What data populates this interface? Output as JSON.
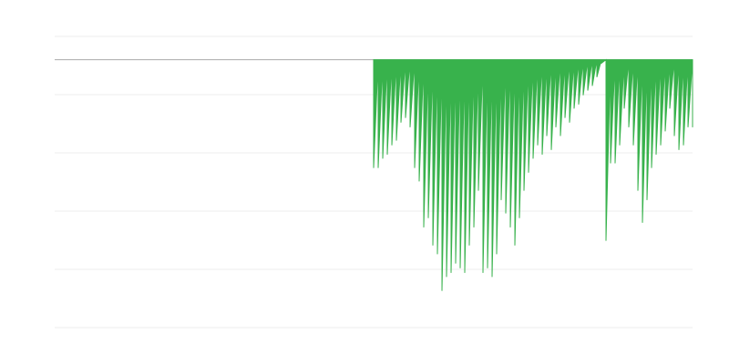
{
  "chart_data": {
    "type": "area",
    "color": "#38b24c",
    "grid": true,
    "xlim": [
      0,
      700
    ],
    "ylim": [
      -46,
      4
    ],
    "yticks": [
      4,
      -6,
      -16,
      -26,
      -36,
      -46
    ],
    "x": [
      350,
      355,
      360,
      365,
      370,
      375,
      380,
      385,
      390,
      395,
      400,
      405,
      410,
      415,
      420,
      425,
      430,
      435,
      440,
      445,
      450,
      455,
      460,
      465,
      470,
      475,
      480,
      485,
      490,
      495,
      500,
      505,
      510,
      515,
      520,
      525,
      530,
      535,
      540,
      545,
      550,
      555,
      560,
      565,
      570,
      575,
      580,
      585,
      590,
      595,
      600,
      605,
      610,
      615,
      620,
      625,
      630,
      635,
      640,
      645,
      650,
      655,
      660,
      665,
      670,
      675,
      680,
      685,
      690,
      695,
      700
    ],
    "values": [
      -18.6,
      -18.6,
      -17.0,
      -16.3,
      -14.7,
      -13.9,
      -10.8,
      -10.0,
      -11.6,
      -18.6,
      -20.9,
      -28.8,
      -27.2,
      -31.9,
      -33.4,
      -39.7,
      -37.3,
      -36.6,
      -35.0,
      -35.8,
      -36.6,
      -31.9,
      -28.8,
      -22.5,
      -36.6,
      -35.8,
      -37.3,
      -33.4,
      -24.1,
      -26.4,
      -28.8,
      -31.9,
      -27.2,
      -22.5,
      -19.4,
      -17.0,
      -14.7,
      -16.3,
      -13.1,
      -15.5,
      -11.6,
      -13.1,
      -10.0,
      -10.8,
      -8.4,
      -7.7,
      -6.1,
      -5.3,
      -4.5,
      -3.0,
      -0.6,
      -31.1,
      -17.8,
      -17.8,
      -14.7,
      -8.4,
      -11.6,
      -14.7,
      -22.5,
      -28.0,
      -24.1,
      -18.6,
      -16.3,
      -14.7,
      -12.3,
      -8.4,
      -13.1,
      -15.5,
      -14.7,
      -11.6,
      -11.6
    ]
  }
}
